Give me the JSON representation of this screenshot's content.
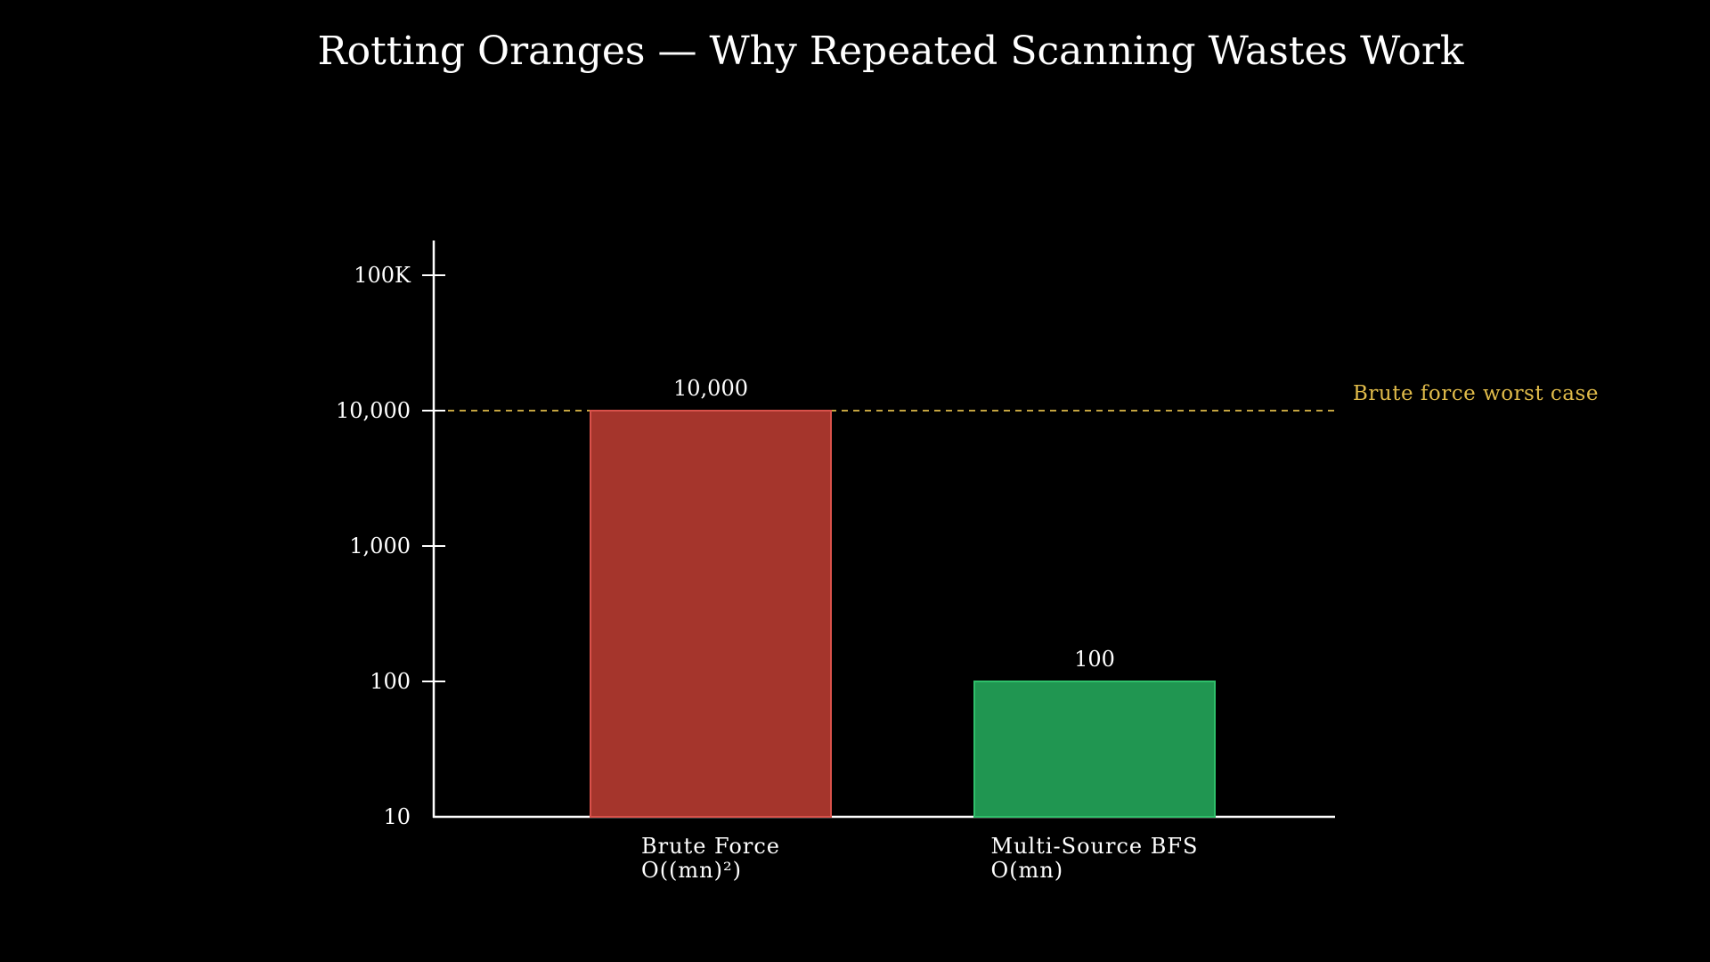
{
  "chart_data": {
    "type": "bar",
    "title": "Rotting Oranges — Why Repeated Scanning Wastes Work",
    "y_scale": "log",
    "ylim": [
      10,
      200000
    ],
    "yticks": [
      {
        "value": 10,
        "label": "10"
      },
      {
        "value": 100,
        "label": "100"
      },
      {
        "value": 1000,
        "label": "1,000"
      },
      {
        "value": 10000,
        "label": "10,000"
      },
      {
        "value": 100000,
        "label": "100K"
      }
    ],
    "categories": [
      {
        "line1": "Brute Force",
        "line2": "O((mn)²)"
      },
      {
        "line1": "Multi-Source BFS",
        "line2": "O(mn)"
      }
    ],
    "values": [
      10000,
      100
    ],
    "value_labels": [
      "10,000",
      "100"
    ],
    "bar_colors": [
      "#a5352c",
      "#209651"
    ],
    "bar_edge_colors": [
      "#d9514a",
      "#2fbf6a"
    ],
    "reference_line": {
      "value": 10000,
      "label": "Brute force worst case",
      "color": "#e0bb4a",
      "style": "dashed"
    },
    "grid": false,
    "legend": "none"
  }
}
